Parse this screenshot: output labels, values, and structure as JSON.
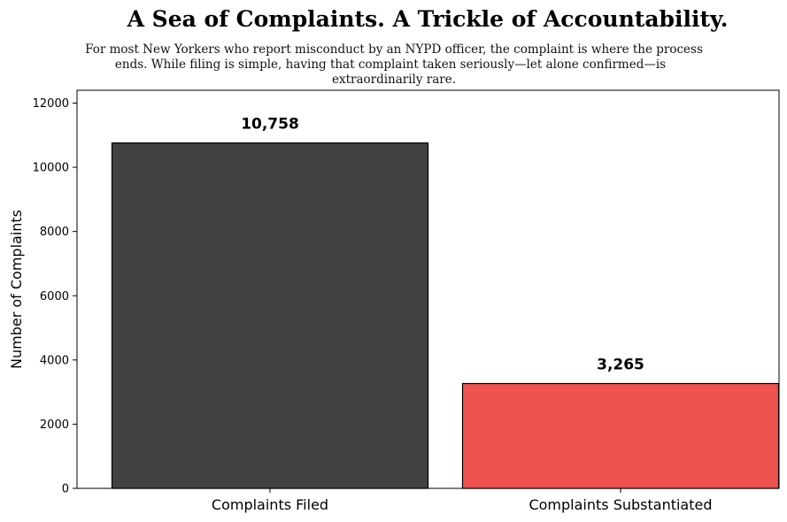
{
  "chart_data": {
    "type": "bar",
    "title": "A Sea of Complaints. A Trickle of Accountability.",
    "subtitle_lines": [
      "For most New Yorkers who report misconduct by an NYPD officer, the complaint is where the process",
      "ends. While filing is simple, having that complaint taken seriously—let alone confirmed—is",
      "extraordinarily rare."
    ],
    "categories": [
      "Complaints Filed",
      "Complaints Substantiated"
    ],
    "values": [
      10758,
      3265
    ],
    "data_labels": [
      "10,758",
      "3,265"
    ],
    "colors": [
      "#424242",
      "#ee5350"
    ],
    "xlabel": "",
    "ylabel": "Number of Complaints",
    "ylim": [
      0,
      12400
    ],
    "yticks": [
      0,
      2000,
      4000,
      6000,
      8000,
      10000,
      12000
    ],
    "grid": false,
    "legend": "none"
  }
}
